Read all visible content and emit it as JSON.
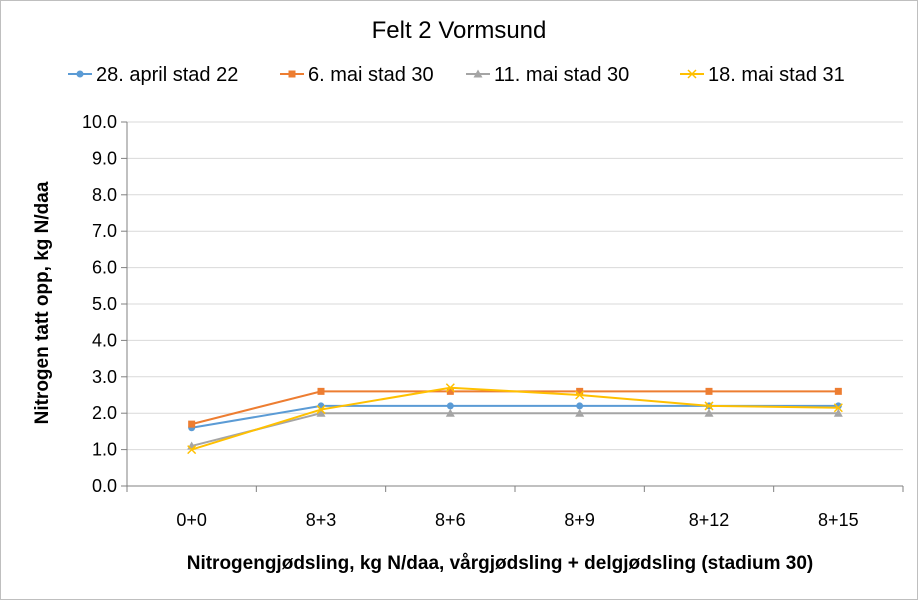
{
  "chart_data": {
    "type": "line",
    "title": "Felt 2 Vormsund",
    "xlabel": "Nitrogengjødsling, kg N/daa, vårgjødsling + delgjødsling (stadium 30)",
    "ylabel": "Nitrogen tatt opp, kg N/daa",
    "categories": [
      "0+0",
      "8+3",
      "8+6",
      "8+9",
      "8+12",
      "8+15"
    ],
    "ylim": [
      0,
      10
    ],
    "yticks": [
      "0.0",
      "1.0",
      "2.0",
      "3.0",
      "4.0",
      "5.0",
      "6.0",
      "7.0",
      "8.0",
      "9.0",
      "10.0"
    ],
    "grid": true,
    "legend": "top",
    "series": [
      {
        "name": "28. april stad 22",
        "color": "#5b9bd5",
        "marker": "circle",
        "values": [
          1.6,
          2.2,
          2.2,
          2.2,
          2.2,
          2.2
        ]
      },
      {
        "name": "6. mai stad 30",
        "color": "#ed7d31",
        "marker": "square",
        "values": [
          1.7,
          2.6,
          2.6,
          2.6,
          2.6,
          2.6
        ]
      },
      {
        "name": "11. mai stad 30",
        "color": "#a5a5a5",
        "marker": "triangle",
        "values": [
          1.1,
          2.0,
          2.0,
          2.0,
          2.0,
          2.0
        ]
      },
      {
        "name": "18. mai stad 31",
        "color": "#ffc000",
        "marker": "x",
        "values": [
          1.0,
          2.1,
          2.7,
          2.5,
          2.2,
          2.15
        ]
      }
    ]
  }
}
